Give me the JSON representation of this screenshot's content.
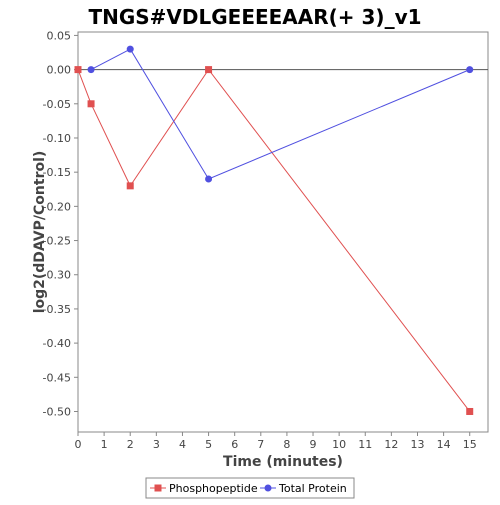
{
  "chart_data": {
    "type": "line",
    "title": "TNGS#VDLGEEEEAAR(+ 3)_v1",
    "xlabel": "Time (minutes)",
    "ylabel": "log2(dDAVP/Control)",
    "xlim": [
      0,
      15.7
    ],
    "ylim": [
      -0.53,
      0.055
    ],
    "x_ticks": [
      0,
      1,
      2,
      3,
      4,
      5,
      6,
      7,
      8,
      9,
      10,
      11,
      12,
      13,
      14,
      15
    ],
    "y_ticks": [
      0.05,
      0.0,
      -0.05,
      -0.1,
      -0.15,
      -0.2,
      -0.25,
      -0.3,
      -0.35,
      -0.4,
      -0.45,
      -0.5
    ],
    "y_tick_labels": [
      "0.05",
      "0.00",
      "-0.05",
      "-0.10",
      "-0.15",
      "-0.20",
      "-0.25",
      "-0.30",
      "-0.35",
      "-0.40",
      "-0.45",
      "-0.50"
    ],
    "zero_line": true,
    "grid": false,
    "legend_position": "bottom",
    "series": [
      {
        "name": "Phosphopeptide",
        "color": "#e05050",
        "marker": "square",
        "x": [
          0,
          0.5,
          2,
          5,
          15
        ],
        "y": [
          0.0,
          -0.05,
          -0.17,
          0.0,
          -0.5
        ]
      },
      {
        "name": "Total Protein",
        "color": "#5050e0",
        "marker": "circle",
        "x": [
          0.5,
          2,
          5,
          15
        ],
        "y": [
          0.0,
          0.03,
          -0.16,
          0.0
        ]
      }
    ]
  }
}
